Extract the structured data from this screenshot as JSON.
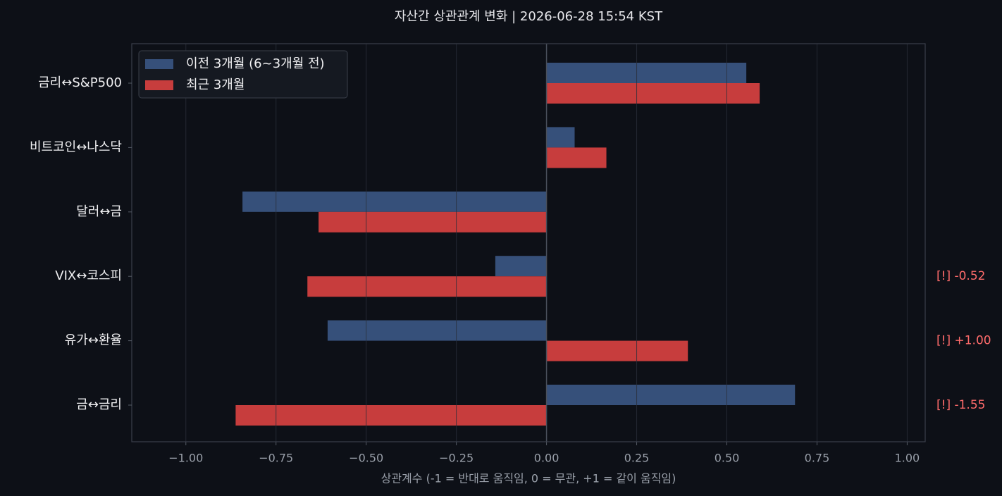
{
  "chart_data": {
    "type": "barh",
    "title": "자산간 상관관계 변화  |  2026-06-28 15:54 KST",
    "x_label": "상관계수 (-1 = 반대로 움직임, 0 = 무관, +1 = 같이 움직임)",
    "categories": [
      "금리↔S&P500",
      "비트코인↔나스닥",
      "달러↔금",
      "VIX↔코스피",
      "유가↔환율",
      "금↔금리"
    ],
    "series": [
      {
        "name": "이전 3개월 (6~3개월 전)",
        "color": "#36507a",
        "values": [
          0.554,
          0.078,
          -0.843,
          -0.142,
          -0.607,
          0.689
        ]
      },
      {
        "name": "최근 3개월",
        "color": "#c73d3d",
        "values": [
          0.591,
          0.166,
          -0.632,
          -0.663,
          0.392,
          -0.862
        ]
      }
    ],
    "annotations": [
      null,
      null,
      null,
      "[!] -0.52",
      "[!] +1.00",
      "[!] -1.55"
    ],
    "xlim": [
      -1.15,
      1.05
    ],
    "xticks": [
      {
        "value": -1,
        "label": "−1.00"
      },
      {
        "value": -0.75,
        "label": "−0.75"
      },
      {
        "value": -0.5,
        "label": "−0.50"
      },
      {
        "value": -0.25,
        "label": "−0.25"
      },
      {
        "value": 0,
        "label": "0.00"
      },
      {
        "value": 0.25,
        "label": "0.25"
      },
      {
        "value": 0.5,
        "label": "0.50"
      },
      {
        "value": 0.75,
        "label": "0.75"
      },
      {
        "value": 1,
        "label": "1.00"
      }
    ],
    "grid": true,
    "legend": "upper left"
  }
}
